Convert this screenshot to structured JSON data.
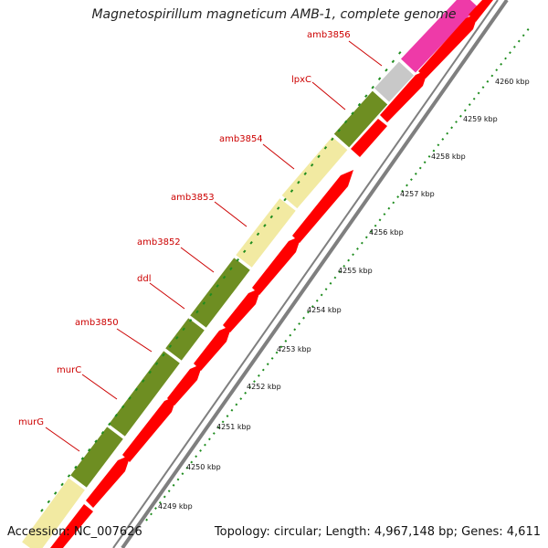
{
  "header": {
    "title": "Magnetospirillum magneticum AMB-1, complete genome"
  },
  "footer": {
    "accession": "Accession: NC_007626",
    "summary": "Topology: circular; Length: 4,967,148 bp; Genes: 4,611"
  },
  "colors": {
    "olive": "#6e8e22",
    "pale_yellow": "#f2eaa2",
    "grey_gene": "#c8c8c8",
    "magenta": "#ee3aa8",
    "red": "#ff0000",
    "backbone": "#7f7f7f",
    "ticks": "#1e8c1e",
    "label": "#cc0000"
  },
  "gene_labels": [
    {
      "name": "amb3856"
    },
    {
      "name": "lpxC"
    },
    {
      "name": "amb3854"
    },
    {
      "name": "amb3853"
    },
    {
      "name": "amb3852"
    },
    {
      "name": "ddl"
    },
    {
      "name": "amb3850"
    },
    {
      "name": "murC"
    },
    {
      "name": "murG"
    }
  ],
  "scale_ticks": [
    "4249 kbp",
    "4250 kbp",
    "4251 kbp",
    "4252 kbp",
    "4253 kbp",
    "4254 kbp",
    "4255 kbp",
    "4256 kbp",
    "4257 kbp",
    "4258 kbp",
    "4259 kbp",
    "4260 kbp"
  ]
}
